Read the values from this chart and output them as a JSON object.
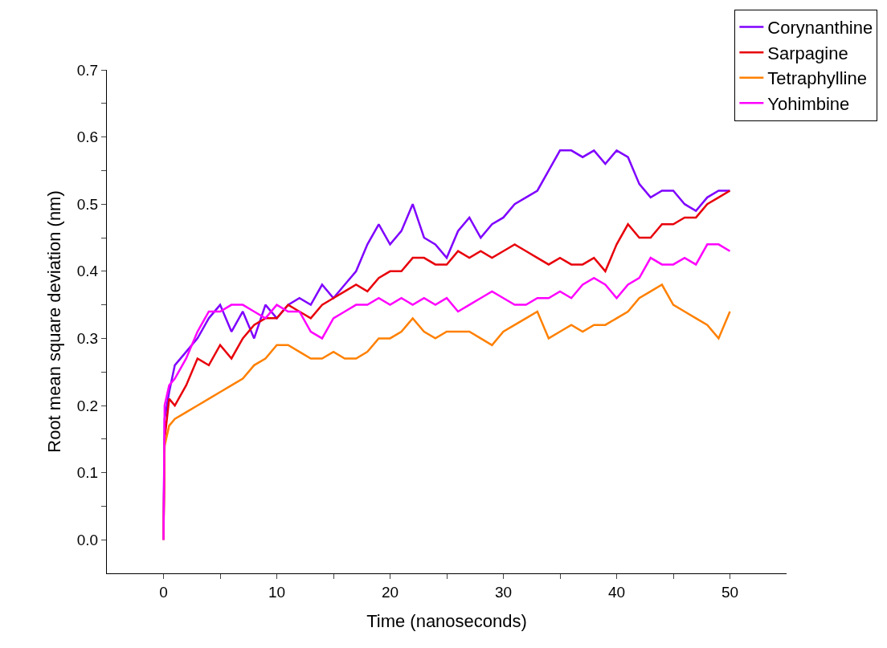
{
  "chart_data": {
    "type": "line",
    "xlabel": "Time (nanoseconds)",
    "ylabel": "Root mean square deviation (nm)",
    "xlim": [
      -5,
      55
    ],
    "ylim": [
      -0.05,
      0.7
    ],
    "xticks": [
      0,
      {
        "value": 5,
        "label": null
      },
      10,
      {
        "value": 15,
        "label": null
      },
      20,
      {
        "value": 25,
        "label": null
      },
      30,
      {
        "value": 35,
        "label": null
      },
      40,
      {
        "value": 45,
        "label": null
      },
      50
    ],
    "yticks": [
      {
        "value": 0,
        "label": "0.0"
      },
      {
        "value": 0.05,
        "label": null
      },
      0.1,
      {
        "value": 0.15,
        "label": null
      },
      0.2,
      {
        "value": 0.25,
        "label": null
      },
      0.3,
      {
        "value": 0.35,
        "label": null
      },
      0.4,
      {
        "value": 0.45,
        "label": null
      },
      0.5,
      {
        "value": 0.55,
        "label": null
      },
      0.6,
      {
        "value": 0.65,
        "label": null
      },
      0.7
    ],
    "grid": false,
    "legend": "top right",
    "marker": "none",
    "line_style": "solid",
    "x": [
      0,
      0.1,
      0.5,
      1,
      2,
      3,
      4,
      5,
      6,
      7,
      8,
      9,
      10,
      11,
      12,
      13,
      14,
      15,
      16,
      17,
      18,
      19,
      20,
      21,
      22,
      23,
      24,
      25,
      26,
      27,
      28,
      29,
      30,
      31,
      32,
      33,
      34,
      35,
      36,
      37,
      38,
      39,
      40,
      41,
      42,
      43,
      44,
      45,
      46,
      47,
      48,
      49,
      50
    ],
    "series": [
      {
        "name": "Corynanthine",
        "color": "#7f00ff",
        "values": [
          0,
          0.18,
          0.22,
          0.26,
          0.28,
          0.3,
          0.33,
          0.35,
          0.31,
          0.34,
          0.3,
          0.35,
          0.33,
          0.35,
          0.36,
          0.35,
          0.38,
          0.36,
          0.38,
          0.4,
          0.44,
          0.47,
          0.44,
          0.46,
          0.5,
          0.45,
          0.44,
          0.42,
          0.46,
          0.48,
          0.45,
          0.47,
          0.48,
          0.5,
          0.51,
          0.52,
          0.55,
          0.58,
          0.58,
          0.57,
          0.58,
          0.56,
          0.58,
          0.57,
          0.53,
          0.51,
          0.52,
          0.52,
          0.5,
          0.49,
          0.51,
          0.52,
          0.52
        ]
      },
      {
        "name": "Sarpagine",
        "color": "#e8000b",
        "values": [
          0,
          0.15,
          0.21,
          0.2,
          0.23,
          0.27,
          0.26,
          0.29,
          0.27,
          0.3,
          0.32,
          0.33,
          0.33,
          0.35,
          0.34,
          0.33,
          0.35,
          0.36,
          0.37,
          0.38,
          0.37,
          0.39,
          0.4,
          0.4,
          0.42,
          0.42,
          0.41,
          0.41,
          0.43,
          0.42,
          0.43,
          0.42,
          0.43,
          0.44,
          0.43,
          0.42,
          0.41,
          0.42,
          0.41,
          0.41,
          0.42,
          0.4,
          0.44,
          0.47,
          0.45,
          0.45,
          0.47,
          0.47,
          0.48,
          0.48,
          0.5,
          0.51,
          0.52
        ]
      },
      {
        "name": "Tetraphylline",
        "color": "#ff8000",
        "values": [
          0,
          0.14,
          0.17,
          0.18,
          0.19,
          0.2,
          0.21,
          0.22,
          0.23,
          0.24,
          0.26,
          0.27,
          0.29,
          0.29,
          0.28,
          0.27,
          0.27,
          0.28,
          0.27,
          0.27,
          0.28,
          0.3,
          0.3,
          0.31,
          0.33,
          0.31,
          0.3,
          0.31,
          0.31,
          0.31,
          0.3,
          0.29,
          0.31,
          0.32,
          0.33,
          0.34,
          0.3,
          0.31,
          0.32,
          0.31,
          0.32,
          0.32,
          0.33,
          0.34,
          0.36,
          0.37,
          0.38,
          0.35,
          0.34,
          0.33,
          0.32,
          0.3,
          0.34
        ]
      },
      {
        "name": "Yohimbine",
        "color": "#ff00ff",
        "values": [
          0,
          0.2,
          0.23,
          0.24,
          0.27,
          0.31,
          0.34,
          0.34,
          0.35,
          0.35,
          0.34,
          0.33,
          0.35,
          0.34,
          0.34,
          0.31,
          0.3,
          0.33,
          0.34,
          0.35,
          0.35,
          0.36,
          0.35,
          0.36,
          0.35,
          0.36,
          0.35,
          0.36,
          0.34,
          0.35,
          0.36,
          0.37,
          0.36,
          0.35,
          0.35,
          0.36,
          0.36,
          0.37,
          0.36,
          0.38,
          0.39,
          0.38,
          0.36,
          0.38,
          0.39,
          0.42,
          0.41,
          0.41,
          0.42,
          0.41,
          0.44,
          0.44,
          0.43
        ]
      }
    ]
  }
}
